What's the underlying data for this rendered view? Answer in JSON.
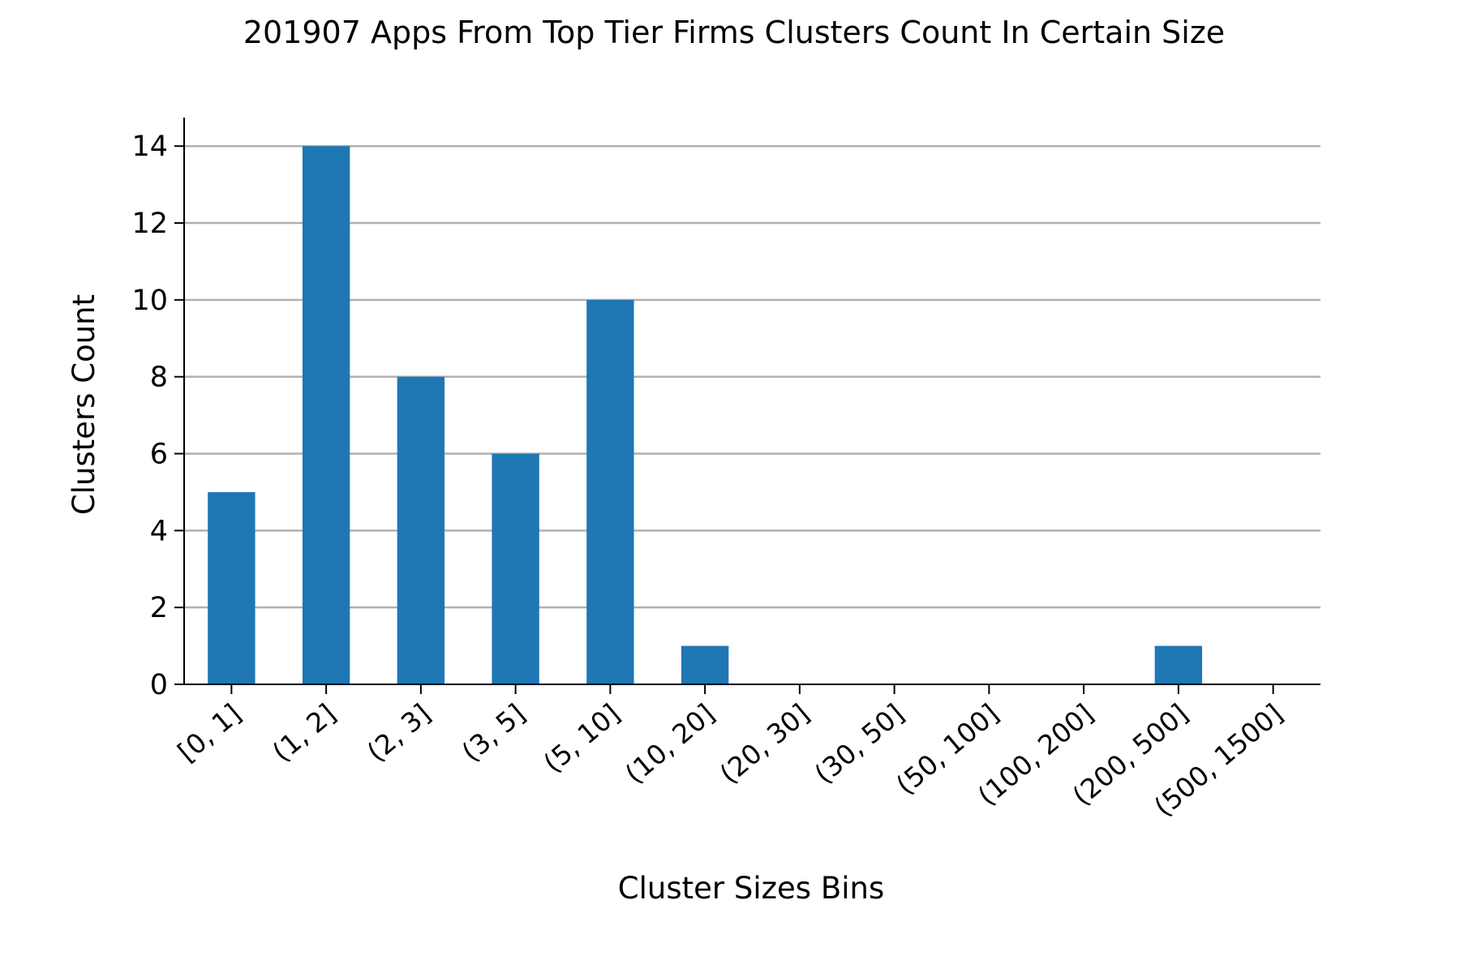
{
  "chart_data": {
    "type": "bar",
    "title": "201907 Apps From Top Tier Firms Clusters Count In Certain Size",
    "xlabel": "Cluster Sizes Bins",
    "ylabel": "Clusters Count",
    "categories": [
      "[0, 1]",
      "(1, 2]",
      "(2, 3]",
      "(3, 5]",
      "(5, 10]",
      "(10, 20]",
      "(20, 30]",
      "(30, 50]",
      "(50, 100]",
      "(100, 200]",
      "(200, 500]",
      "(500, 1500]"
    ],
    "values": [
      5,
      14,
      8,
      6,
      10,
      1,
      0,
      0,
      0,
      0,
      1,
      0
    ],
    "ylim": [
      0,
      14.7
    ],
    "yticks": [
      0,
      2,
      4,
      6,
      8,
      10,
      12,
      14
    ],
    "grid": "y",
    "bar_color": "#1f77b4",
    "grid_color": "#b0b0b0"
  }
}
